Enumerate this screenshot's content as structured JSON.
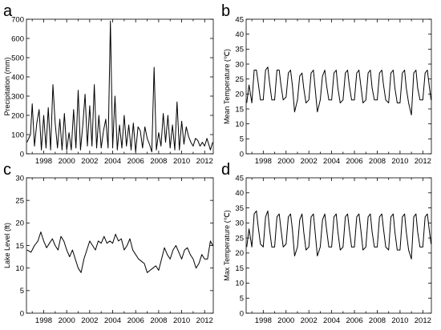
{
  "chart_data": [
    {
      "panel": "a",
      "type": "line",
      "xlabel": "",
      "ylabel": "Precipitation (mm)",
      "xlim": [
        1996.5,
        2012.75
      ],
      "ylim": [
        0,
        700
      ],
      "yticks": [
        0,
        100,
        200,
        300,
        400,
        500,
        600,
        700
      ],
      "xticks": [
        1998,
        2000,
        2002,
        2004,
        2006,
        2008,
        2010,
        2012
      ],
      "x": [
        1996.55,
        1996.85,
        1997.0,
        1997.2,
        1997.4,
        1997.6,
        1997.8,
        1998.0,
        1998.2,
        1998.4,
        1998.6,
        1998.8,
        1999.0,
        1999.2,
        1999.4,
        1999.6,
        1999.8,
        2000.0,
        2000.2,
        2000.4,
        2000.6,
        2000.8,
        2001.0,
        2001.2,
        2001.4,
        2001.6,
        2001.8,
        2002.0,
        2002.2,
        2002.4,
        2002.6,
        2002.8,
        2003.0,
        2003.2,
        2003.4,
        2003.6,
        2003.8,
        2004.0,
        2004.2,
        2004.4,
        2004.6,
        2004.8,
        2005.0,
        2005.2,
        2005.4,
        2005.6,
        2005.8,
        2006.0,
        2006.2,
        2006.4,
        2006.6,
        2006.8,
        2007.0,
        2007.2,
        2007.4,
        2007.6,
        2007.8,
        2008.0,
        2008.2,
        2008.4,
        2008.6,
        2008.8,
        2009.0,
        2009.2,
        2009.4,
        2009.6,
        2009.8,
        2010.0,
        2010.2,
        2010.4,
        2010.6,
        2010.8,
        2011.0,
        2011.2,
        2011.4,
        2011.6,
        2011.8,
        2012.0,
        2012.2,
        2012.5,
        2012.7
      ],
      "series": [
        {
          "values": [
            60,
            100,
            260,
            40,
            160,
            230,
            20,
            200,
            30,
            240,
            20,
            360,
            160,
            30,
            180,
            20,
            210,
            20,
            110,
            20,
            230,
            30,
            330,
            20,
            150,
            310,
            40,
            250,
            40,
            360,
            30,
            200,
            30,
            120,
            180,
            30,
            690,
            30,
            300,
            20,
            150,
            30,
            200,
            40,
            150,
            20,
            160,
            10,
            140,
            120,
            30,
            140,
            80,
            50,
            10,
            450,
            20,
            110,
            40,
            210,
            60,
            200,
            30,
            150,
            20,
            270,
            20,
            170,
            50,
            140,
            90,
            60,
            40,
            80,
            70,
            40,
            60,
            40,
            80,
            20,
            60
          ]
        }
      ]
    },
    {
      "panel": "b",
      "type": "line",
      "xlabel": "",
      "ylabel": "Mean Temperature (℃)",
      "xlim": [
        1996.5,
        2012.75
      ],
      "ylim": [
        0,
        45
      ],
      "yticks": [
        0,
        5,
        10,
        15,
        20,
        25,
        30,
        35,
        40,
        45
      ],
      "xticks": [
        1998,
        2000,
        2002,
        2004,
        2006,
        2008,
        2010,
        2012
      ],
      "x": [
        1996.55,
        1996.75,
        1997.0,
        1997.2,
        1997.4,
        1997.55,
        1997.75,
        1998.0,
        1998.2,
        1998.4,
        1998.55,
        1998.75,
        1999.0,
        1999.2,
        1999.4,
        1999.55,
        1999.75,
        2000.0,
        2000.2,
        2000.4,
        2000.55,
        2000.75,
        2001.0,
        2001.2,
        2001.4,
        2001.55,
        2001.75,
        2002.0,
        2002.2,
        2002.4,
        2002.55,
        2002.75,
        2003.0,
        2003.2,
        2003.4,
        2003.55,
        2003.75,
        2004.0,
        2004.2,
        2004.4,
        2004.55,
        2004.75,
        2005.0,
        2005.2,
        2005.4,
        2005.55,
        2005.75,
        2006.0,
        2006.2,
        2006.4,
        2006.55,
        2006.75,
        2007.0,
        2007.2,
        2007.4,
        2007.55,
        2007.75,
        2008.0,
        2008.2,
        2008.4,
        2008.55,
        2008.75,
        2009.0,
        2009.2,
        2009.4,
        2009.55,
        2009.75,
        2010.0,
        2010.2,
        2010.4,
        2010.55,
        2010.75,
        2011.0,
        2011.2,
        2011.4,
        2011.55,
        2011.75,
        2012.0,
        2012.2,
        2012.4,
        2012.55,
        2012.72
      ],
      "series": [
        {
          "values": [
            17,
            23,
            17,
            28,
            28,
            24,
            18,
            18,
            28,
            29,
            24,
            18,
            18,
            28,
            28,
            23,
            18,
            19,
            27,
            28,
            23,
            14,
            18,
            26,
            27,
            22,
            17,
            18,
            27,
            28,
            22,
            14,
            18,
            26,
            28,
            23,
            18,
            18,
            27,
            28,
            22,
            17,
            18,
            27,
            28,
            23,
            18,
            18,
            27,
            28,
            23,
            17,
            18,
            27,
            28,
            22,
            18,
            18,
            27,
            28,
            23,
            18,
            17,
            27,
            28,
            22,
            17,
            17,
            27,
            28,
            22,
            17,
            13,
            27,
            28,
            22,
            18,
            18,
            27,
            28,
            23,
            18
          ]
        }
      ]
    },
    {
      "panel": "c",
      "type": "line",
      "xlabel": "",
      "ylabel": "Lake Level (ft)",
      "xlim": [
        1996.5,
        2012.75
      ],
      "ylim": [
        0,
        30
      ],
      "yticks": [
        0,
        5,
        10,
        15,
        20,
        25,
        30
      ],
      "xticks": [
        1998,
        2000,
        2002,
        2004,
        2006,
        2008,
        2010,
        2012
      ],
      "x": [
        1996.55,
        1996.9,
        1997.2,
        1997.5,
        1997.75,
        1998.0,
        1998.25,
        1998.5,
        1998.75,
        1999.0,
        1999.25,
        1999.5,
        1999.75,
        2000.0,
        2000.25,
        2000.5,
        2000.75,
        2001.0,
        2001.25,
        2001.5,
        2001.75,
        2002.0,
        2002.25,
        2002.5,
        2002.75,
        2003.0,
        2003.25,
        2003.5,
        2003.75,
        2004.0,
        2004.25,
        2004.5,
        2004.75,
        2005.0,
        2005.25,
        2005.5,
        2005.75,
        2006.0,
        2006.25,
        2006.5,
        2006.75,
        2007.0,
        2007.25,
        2007.5,
        2007.75,
        2008.0,
        2008.25,
        2008.5,
        2008.75,
        2009.0,
        2009.25,
        2009.5,
        2009.75,
        2010.0,
        2010.25,
        2010.5,
        2010.75,
        2011.0,
        2011.25,
        2011.5,
        2011.75,
        2012.0,
        2012.25,
        2012.5,
        2012.7
      ],
      "series": [
        {
          "values": [
            14,
            13.5,
            15,
            16,
            18,
            16,
            14.5,
            15.5,
            16.5,
            15,
            14,
            17,
            16,
            14,
            12.5,
            14,
            12,
            10,
            9,
            12,
            14,
            16,
            15,
            14,
            16,
            15.5,
            17,
            15.5,
            16,
            15.5,
            17.5,
            16,
            16.5,
            14,
            15,
            16.5,
            14,
            13,
            12,
            11.5,
            11,
            9,
            9.5,
            10,
            10.5,
            9.5,
            12,
            14.5,
            13,
            12,
            14,
            15,
            13.5,
            12,
            14,
            14.5,
            13,
            12,
            10,
            11,
            13,
            12,
            12,
            16,
            15
          ]
        }
      ]
    },
    {
      "panel": "d",
      "type": "line",
      "xlabel": "",
      "ylabel": "Max Temperature (℃)",
      "xlim": [
        1996.5,
        2012.75
      ],
      "ylim": [
        0,
        45
      ],
      "yticks": [
        0,
        5,
        10,
        15,
        20,
        25,
        30,
        35,
        40,
        45
      ],
      "xticks": [
        1998,
        2000,
        2002,
        2004,
        2006,
        2008,
        2010,
        2012
      ],
      "x": [
        1996.55,
        1996.75,
        1997.0,
        1997.2,
        1997.4,
        1997.55,
        1997.75,
        1998.0,
        1998.2,
        1998.4,
        1998.55,
        1998.75,
        1999.0,
        1999.2,
        1999.4,
        1999.55,
        1999.75,
        2000.0,
        2000.2,
        2000.4,
        2000.55,
        2000.75,
        2001.0,
        2001.2,
        2001.4,
        2001.55,
        2001.75,
        2002.0,
        2002.2,
        2002.4,
        2002.55,
        2002.75,
        2003.0,
        2003.2,
        2003.4,
        2003.55,
        2003.75,
        2004.0,
        2004.2,
        2004.4,
        2004.55,
        2004.75,
        2005.0,
        2005.2,
        2005.4,
        2005.55,
        2005.75,
        2006.0,
        2006.2,
        2006.4,
        2006.55,
        2006.75,
        2007.0,
        2007.2,
        2007.4,
        2007.55,
        2007.75,
        2008.0,
        2008.2,
        2008.4,
        2008.55,
        2008.75,
        2009.0,
        2009.2,
        2009.4,
        2009.55,
        2009.75,
        2010.0,
        2010.2,
        2010.4,
        2010.55,
        2010.75,
        2011.0,
        2011.2,
        2011.4,
        2011.55,
        2011.75,
        2012.0,
        2012.2,
        2012.4,
        2012.55,
        2012.72
      ],
      "series": [
        {
          "values": [
            22,
            28,
            22,
            33,
            34,
            29,
            23,
            22,
            32,
            34,
            28,
            22,
            22,
            32,
            33,
            28,
            22,
            23,
            32,
            33,
            28,
            19,
            22,
            31,
            33,
            27,
            21,
            22,
            32,
            33,
            27,
            19,
            22,
            31,
            33,
            28,
            22,
            22,
            32,
            33,
            27,
            21,
            22,
            32,
            33,
            28,
            22,
            22,
            32,
            33,
            28,
            21,
            22,
            32,
            33,
            27,
            22,
            22,
            32,
            33,
            28,
            22,
            21,
            32,
            33,
            27,
            21,
            21,
            32,
            33,
            27,
            21,
            18,
            32,
            33,
            27,
            22,
            22,
            32,
            33,
            28,
            23
          ]
        }
      ]
    }
  ]
}
